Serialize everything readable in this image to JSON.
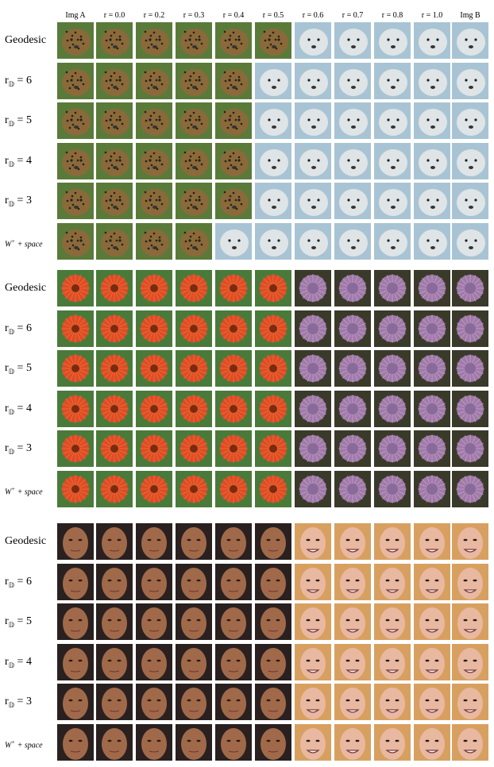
{
  "columns": [
    "Img A",
    "r = 0.0",
    "r = 0.2",
    "r = 0.3",
    "r = 0.4",
    "r = 0.5",
    "r = 0.6",
    "r = 0.7",
    "r = 0.8",
    "r = 1.0",
    "Img B"
  ],
  "row_labels": [
    {
      "type": "text",
      "text": "Geodesic"
    },
    {
      "type": "rd",
      "prefix": "r",
      "sub": "𝔻",
      "value": " = 6"
    },
    {
      "type": "rd",
      "prefix": "r",
      "sub": "𝔻",
      "value": " = 5"
    },
    {
      "type": "rd",
      "prefix": "r",
      "sub": "𝔻",
      "value": " = 4"
    },
    {
      "type": "rd",
      "prefix": "r",
      "sub": "𝔻",
      "value": " = 3"
    },
    {
      "type": "wplus",
      "base": "W",
      "sup": "+",
      "rest": " + space"
    }
  ],
  "blocks": [
    {
      "subject": "cheetah-to-polar-bear",
      "colors": {
        "a": "#8a6a3a",
        "a_spot": "#2b1f10",
        "a_bg": "#5a7a3a",
        "mid": "#9a8a6a",
        "b": "#dfe4e6",
        "b_bg": "#a8c4d4"
      },
      "switch_index": [
        6,
        5,
        5,
        5,
        5,
        4
      ]
    },
    {
      "subject": "red-flower-to-blue-flower",
      "colors": {
        "a": "#e04a2a",
        "a_ring": "#f0c020",
        "a_bg": "#4a7a3a",
        "mid": "#c86070",
        "b": "#a07aa8",
        "b_bg": "#3a3a2a",
        "b_final": "#6a6ad8"
      },
      "switch_index": [
        6,
        6,
        6,
        6,
        6,
        6
      ]
    },
    {
      "subject": "man-face-to-woman-face",
      "colors": {
        "a": "#a06a4a",
        "a_bg": "#2a2020",
        "mid": "#c08070",
        "b": "#e8b8a0",
        "b_bg": "#d8a060"
      },
      "switch_index": [
        6,
        6,
        6,
        6,
        6,
        6
      ]
    }
  ]
}
